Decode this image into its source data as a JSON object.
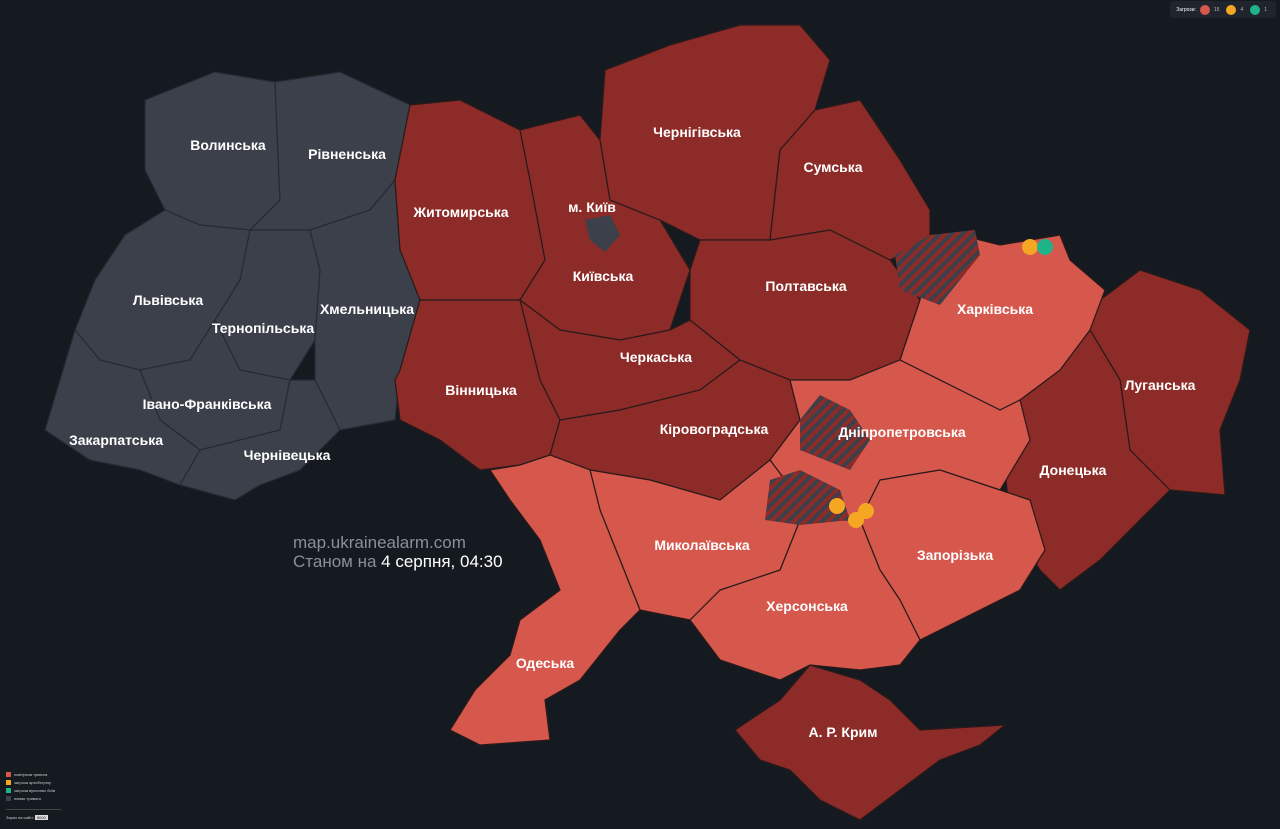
{
  "colors": {
    "background": "#151a21",
    "air_alert": "#d6574c",
    "air_alert_dark": "#8c2b27",
    "no_alert": "#3b404b",
    "artillery": "#f5a623",
    "street_fight": "#1fb389"
  },
  "threats": {
    "label": "Загрози:",
    "items": [
      {
        "icon": "air-alert-icon",
        "count": "15",
        "color": "#d6574c"
      },
      {
        "icon": "artillery-icon",
        "count": "4",
        "color": "#f5a623"
      },
      {
        "icon": "street-fight-icon",
        "count": "1",
        "color": "#1fb389"
      }
    ]
  },
  "watermark": {
    "site": "map.ukrainealarm.com",
    "status_prefix": "Станом на",
    "status_date": "4 серпня, 04:30"
  },
  "legend": {
    "items": [
      {
        "label": "повітряна тривога",
        "color": "#d6574c"
      },
      {
        "label": "загроза артобстрілу",
        "color": "#f5a623"
      },
      {
        "label": "загроза вуличних боїв",
        "color": "#1fb389"
      },
      {
        "label": "немає тривоги",
        "color": "#3b404b"
      }
    ],
    "online_label": "Зараз на сайті:",
    "online_count": "5000"
  },
  "regions": [
    {
      "name": "Волинська",
      "status": "none"
    },
    {
      "name": "Рівненська",
      "status": "none"
    },
    {
      "name": "Львівська",
      "status": "none"
    },
    {
      "name": "Тернопільська",
      "status": "none"
    },
    {
      "name": "Хмельницька",
      "status": "none"
    },
    {
      "name": "Івано-Франківська",
      "status": "none"
    },
    {
      "name": "Закарпатська",
      "status": "none"
    },
    {
      "name": "Чернівецька",
      "status": "none"
    },
    {
      "name": "Житомирська",
      "status": "alert"
    },
    {
      "name": "м. Київ",
      "status": "none"
    },
    {
      "name": "Київська",
      "status": "alert"
    },
    {
      "name": "Чернігівська",
      "status": "alert"
    },
    {
      "name": "Сумська",
      "status": "alert"
    },
    {
      "name": "Полтавська",
      "status": "alert"
    },
    {
      "name": "Черкаська",
      "status": "alert"
    },
    {
      "name": "Вінницька",
      "status": "alert"
    },
    {
      "name": "Кіровоградська",
      "status": "alert"
    },
    {
      "name": "Харківська",
      "status": "alert"
    },
    {
      "name": "Луганська",
      "status": "alert"
    },
    {
      "name": "Дніпропетровська",
      "status": "alert"
    },
    {
      "name": "Донецька",
      "status": "alert"
    },
    {
      "name": "Миколаївська",
      "status": "alert"
    },
    {
      "name": "Запорізька",
      "status": "alert"
    },
    {
      "name": "Херсонська",
      "status": "alert"
    },
    {
      "name": "Одеська",
      "status": "alert"
    },
    {
      "name": "А. Р. Крим",
      "status": "alert"
    }
  ]
}
